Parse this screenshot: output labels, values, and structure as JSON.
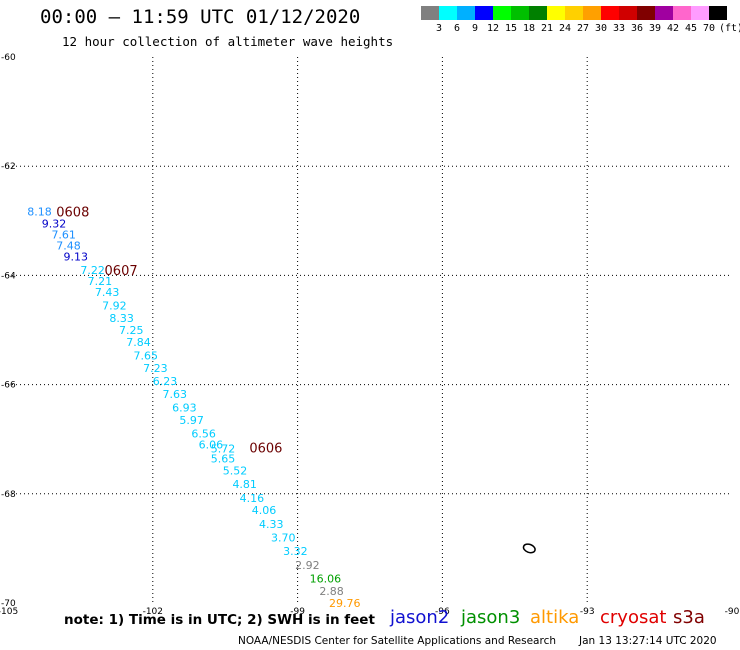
{
  "header": {
    "title": "00:00 – 11:59 UTC 01/12/2020",
    "subtitle": "12 hour collection of altimeter wave heights"
  },
  "color_scale": {
    "unit": "(ft)",
    "swatches": [
      "#808080",
      "#00ffff",
      "#00b0ff",
      "#0000ff",
      "#00ff00",
      "#00c000",
      "#008000",
      "#ffff00",
      "#ffd000",
      "#ffa000",
      "#ff0000",
      "#d00000",
      "#800000",
      "#a000a0",
      "#ff66cc",
      "#ff9cff",
      "#000000"
    ],
    "labels": [
      "3",
      "6",
      "9",
      "12",
      "15",
      "18",
      "21",
      "24",
      "27",
      "30",
      "33",
      "36",
      "39",
      "42",
      "45",
      "70"
    ]
  },
  "map": {
    "lon_range": [
      -105,
      -90
    ],
    "lat_range": [
      -70,
      -60
    ],
    "lon_ticks": [
      "-105",
      "-102",
      "-99",
      "-96",
      "-93",
      "-90"
    ],
    "lat_ticks": [
      "-60",
      "-62",
      "-64",
      "-66",
      "-68",
      "-70"
    ],
    "grid": true,
    "island": "small island outline near -94.2, -69.0"
  },
  "chart_data": {
    "type": "scatter",
    "xlabel": "",
    "ylabel": "",
    "xlim": [
      -105,
      -90
    ],
    "ylim": [
      -70,
      -60
    ],
    "observations": [
      {
        "lon": -104.6,
        "lat": -62.83,
        "v": "8.18",
        "c": "#1e90ff"
      },
      {
        "lon": -104.3,
        "lat": -63.05,
        "v": "9.32",
        "c": "#0000c8"
      },
      {
        "lon": -104.1,
        "lat": -63.25,
        "v": "7.61",
        "c": "#1e90ff"
      },
      {
        "lon": -104.0,
        "lat": -63.45,
        "v": "7.48",
        "c": "#1e90ff"
      },
      {
        "lon": -103.85,
        "lat": -63.65,
        "v": "9.13",
        "c": "#0000c8"
      },
      {
        "lon": -103.5,
        "lat": -63.9,
        "v": "7.22",
        "c": "#00ccff"
      },
      {
        "lon": -103.35,
        "lat": -64.1,
        "v": "7.21",
        "c": "#00ccff"
      },
      {
        "lon": -103.2,
        "lat": -64.3,
        "v": "7.43",
        "c": "#00ccff"
      },
      {
        "lon": -103.05,
        "lat": -64.55,
        "v": "7.92",
        "c": "#00ccff"
      },
      {
        "lon": -102.9,
        "lat": -64.78,
        "v": "8.33",
        "c": "#00ccff"
      },
      {
        "lon": -102.7,
        "lat": -65.0,
        "v": "7.25",
        "c": "#00ccff"
      },
      {
        "lon": -102.55,
        "lat": -65.22,
        "v": "7.84",
        "c": "#00ccff"
      },
      {
        "lon": -102.4,
        "lat": -65.47,
        "v": "7.65",
        "c": "#00ccff"
      },
      {
        "lon": -102.2,
        "lat": -65.7,
        "v": "7.23",
        "c": "#00ccff"
      },
      {
        "lon": -102.0,
        "lat": -65.93,
        "v": "6.23",
        "c": "#00ccff"
      },
      {
        "lon": -101.8,
        "lat": -66.17,
        "v": "7.63",
        "c": "#00ccff"
      },
      {
        "lon": -101.6,
        "lat": -66.42,
        "v": "6.93",
        "c": "#00ccff"
      },
      {
        "lon": -101.45,
        "lat": -66.65,
        "v": "5.97",
        "c": "#00ccff"
      },
      {
        "lon": -101.2,
        "lat": -66.9,
        "v": "6.56",
        "c": "#00ccff"
      },
      {
        "lon": -101.05,
        "lat": -67.1,
        "v": "6.06",
        "c": "#00ccff"
      },
      {
        "lon": -100.8,
        "lat": -67.17,
        "v": "5.72",
        "c": "#00ccff"
      },
      {
        "lon": -100.8,
        "lat": -67.35,
        "v": "5.65",
        "c": "#00ccff"
      },
      {
        "lon": -100.55,
        "lat": -67.57,
        "v": "5.52",
        "c": "#00ccff"
      },
      {
        "lon": -100.35,
        "lat": -67.82,
        "v": "4.81",
        "c": "#00ccff"
      },
      {
        "lon": -100.2,
        "lat": -68.08,
        "v": "4.16",
        "c": "#00ccff"
      },
      {
        "lon": -99.95,
        "lat": -68.3,
        "v": "4.06",
        "c": "#00ccff"
      },
      {
        "lon": -99.8,
        "lat": -68.55,
        "v": "4.33",
        "c": "#00ccff"
      },
      {
        "lon": -99.55,
        "lat": -68.8,
        "v": "3.70",
        "c": "#00ccff"
      },
      {
        "lon": -99.3,
        "lat": -69.05,
        "v": "3.32",
        "c": "#00ccff"
      },
      {
        "lon": -99.05,
        "lat": -69.3,
        "v": "2.92",
        "c": "#808080"
      },
      {
        "lon": -98.75,
        "lat": -69.55,
        "v": "16.06",
        "c": "#00a000"
      },
      {
        "lon": -98.55,
        "lat": -69.78,
        "v": "2.88",
        "c": "#808080"
      },
      {
        "lon": -98.35,
        "lat": -70.0,
        "v": "29.76",
        "c": "#ff9900"
      }
    ],
    "time_labels": [
      {
        "lon": -104.0,
        "lat": -62.83,
        "v": "0608"
      },
      {
        "lon": -103.0,
        "lat": -63.9,
        "v": "0607"
      },
      {
        "lon": -100.0,
        "lat": -67.15,
        "v": "0606"
      }
    ]
  },
  "note": "note:  1) Time is in UTC; 2) SWH is in feet",
  "legend": [
    {
      "name": "jason2",
      "color": "#1010d0"
    },
    {
      "name": "jason3",
      "color": "#009000"
    },
    {
      "name": "altika",
      "color": "#ff9900"
    },
    {
      "name": "cryosat",
      "color": "#e00000"
    },
    {
      "name": "s3a",
      "color": "#800000"
    }
  ],
  "footer": {
    "left": "NOAA/NESDIS Center for Satellite Applications and Research",
    "right": "Jan 13 13:27:14 UTC 2020"
  }
}
